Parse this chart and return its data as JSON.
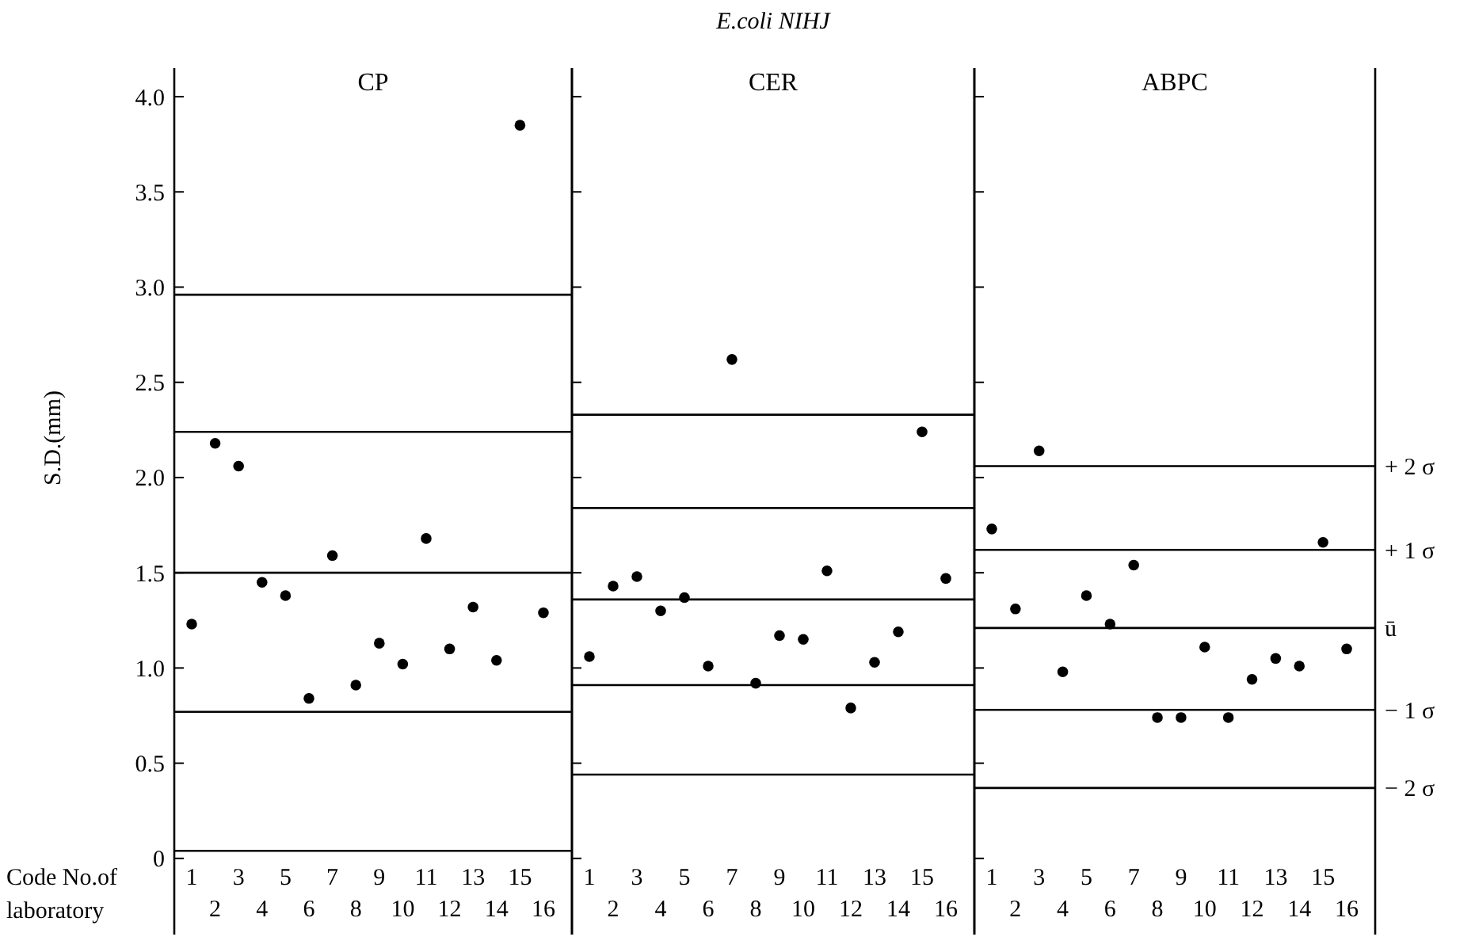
{
  "chart_data": [
    {
      "type": "scatter",
      "title": "CP",
      "xlabel": "Code No.of laboratory",
      "ylabel": "S.D.(mm)",
      "categories": [
        "1",
        "2",
        "3",
        "4",
        "5",
        "6",
        "7",
        "8",
        "9",
        "10",
        "11",
        "12",
        "13",
        "14",
        "15",
        "16"
      ],
      "ylim": [
        -0.4,
        4.15
      ],
      "yticks": [
        {
          "value": 0,
          "label": "0"
        },
        0.5,
        {
          "value": 1,
          "label": "1.0"
        },
        1.5,
        {
          "value": 2,
          "label": "2.0"
        },
        2.5,
        {
          "value": 3,
          "label": "3.0"
        },
        3.5,
        {
          "value": 4,
          "label": "4.0"
        }
      ],
      "marker": "circle",
      "grid": false,
      "series": [
        {
          "color": "#000000",
          "values": [
            1.23,
            2.18,
            2.06,
            1.45,
            1.38,
            0.84,
            1.59,
            0.91,
            1.13,
            1.02,
            1.68,
            1.1,
            1.32,
            1.04,
            3.85,
            1.29
          ]
        }
      ],
      "ref_lines": [
        {
          "axis": "y",
          "value": 2.96,
          "label": null
        },
        {
          "axis": "y",
          "value": 2.24,
          "label": null
        },
        {
          "axis": "y",
          "value": 1.5,
          "label": null
        },
        {
          "axis": "y",
          "value": 0.77,
          "label": null
        },
        {
          "axis": "y",
          "value": 0.04,
          "label": null
        }
      ]
    },
    {
      "type": "scatter",
      "subtitle": "E.coli NIHJ",
      "title": "CER",
      "categories": [
        "1",
        "2",
        "3",
        "4",
        "5",
        "6",
        "7",
        "8",
        "9",
        "10",
        "11",
        "12",
        "13",
        "14",
        "15",
        "16"
      ],
      "ylim": [
        -0.4,
        4.15
      ],
      "yticks": [
        0,
        0.5,
        1,
        1.5,
        2,
        2.5,
        3,
        3.5,
        4
      ],
      "tick_labels": "x",
      "marker": "circle",
      "grid": false,
      "series": [
        {
          "color": "#000000",
          "values": [
            1.06,
            1.43,
            1.48,
            1.3,
            1.37,
            1.01,
            2.62,
            0.92,
            1.17,
            1.15,
            1.51,
            0.79,
            1.03,
            1.19,
            2.24,
            1.47
          ]
        }
      ],
      "ref_lines": [
        {
          "axis": "y",
          "value": 2.33,
          "label": null
        },
        {
          "axis": "y",
          "value": 1.84,
          "label": null
        },
        {
          "axis": "y",
          "value": 1.36,
          "label": null
        },
        {
          "axis": "y",
          "value": 0.91,
          "label": null
        },
        {
          "axis": "y",
          "value": 0.44,
          "label": null
        }
      ]
    },
    {
      "type": "scatter",
      "title": "ABPC",
      "categories": [
        "1",
        "2",
        "3",
        "4",
        "5",
        "6",
        "7",
        "8",
        "9",
        "10",
        "11",
        "12",
        "13",
        "14",
        "15",
        "16"
      ],
      "ylim": [
        -0.4,
        4.15
      ],
      "yticks": [
        0,
        0.5,
        1,
        1.5,
        2,
        2.5,
        3,
        3.5,
        4
      ],
      "tick_labels": "x",
      "marker": "circle",
      "grid": false,
      "series": [
        {
          "color": "#000000",
          "values": [
            1.73,
            1.31,
            2.14,
            0.98,
            1.38,
            1.23,
            1.54,
            0.74,
            0.74,
            1.11,
            0.74,
            0.94,
            1.05,
            1.01,
            1.66,
            1.1
          ]
        }
      ],
      "ref_lines": [
        {
          "axis": "y",
          "value": 2.06,
          "label": "+ 2 σ"
        },
        {
          "axis": "y",
          "value": 1.62,
          "label": "+ 1 σ"
        },
        {
          "axis": "y",
          "value": 1.21,
          "label": "ū"
        },
        {
          "axis": "y",
          "value": 0.78,
          "label": "− 1 σ"
        },
        {
          "axis": "y",
          "value": 0.37,
          "label": "− 2 σ"
        }
      ]
    }
  ]
}
